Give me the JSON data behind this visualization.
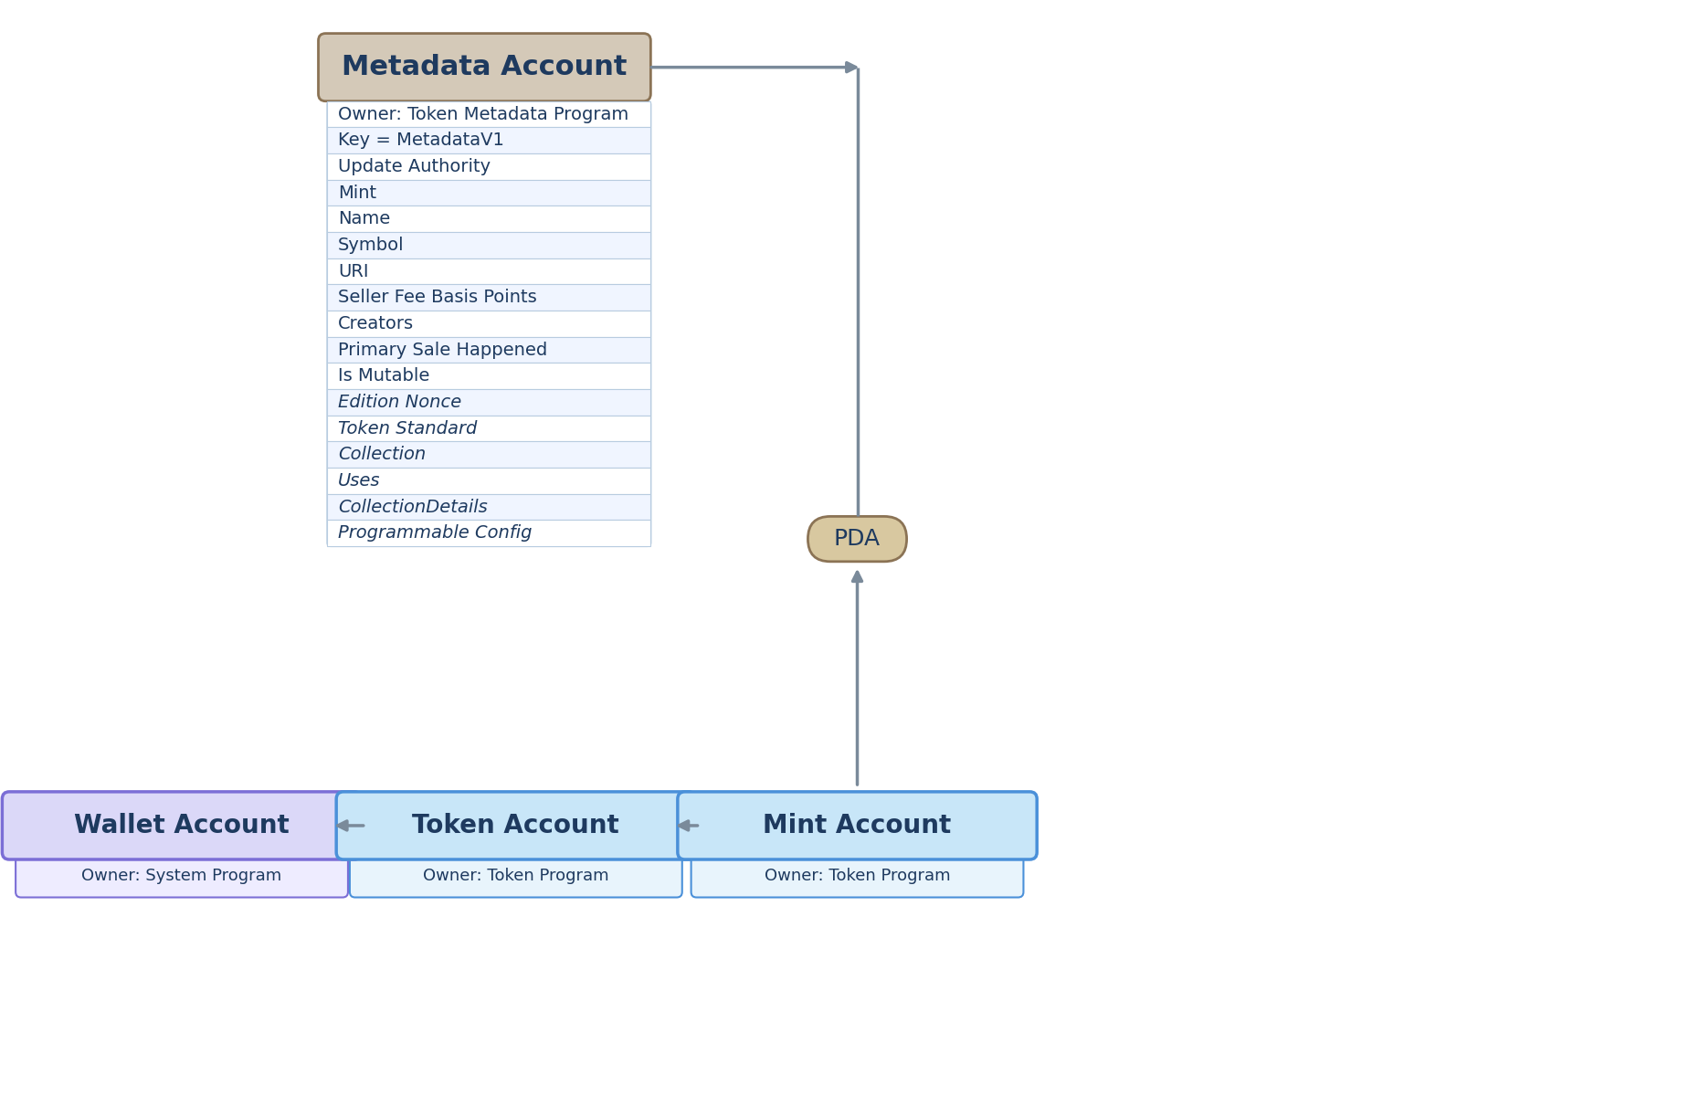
{
  "bg_color": "#ffffff",
  "title_text": "Metadata Account",
  "title_bg": "#d4c9b8",
  "title_border": "#8b7355",
  "title_text_color": "#1e3a5f",
  "field_bg_even": "#ffffff",
  "field_bg_odd": "#f0f5ff",
  "field_border": "#b8cce0",
  "field_text_color": "#1e3a5f",
  "metadata_fields": [
    {
      "text": "Owner: Token Metadata Program",
      "italic": false
    },
    {
      "text": "Key = MetadataV1",
      "italic": false
    },
    {
      "text": "Update Authority",
      "italic": false
    },
    {
      "text": "Mint",
      "italic": false
    },
    {
      "text": "Name",
      "italic": false
    },
    {
      "text": "Symbol",
      "italic": false
    },
    {
      "text": "URI",
      "italic": false
    },
    {
      "text": "Seller Fee Basis Points",
      "italic": false
    },
    {
      "text": "Creators",
      "italic": false
    },
    {
      "text": "Primary Sale Happened",
      "italic": false
    },
    {
      "text": "Is Mutable",
      "italic": false
    },
    {
      "text": "Edition Nonce",
      "italic": true
    },
    {
      "text": "Token Standard",
      "italic": true
    },
    {
      "text": "Collection",
      "italic": true
    },
    {
      "text": "Uses",
      "italic": true
    },
    {
      "text": "CollectionDetails",
      "italic": true
    },
    {
      "text": "Programmable Config",
      "italic": true
    }
  ],
  "wallet_title": "Wallet Account",
  "wallet_subtitle": "Owner: System Program",
  "wallet_bg": "#dbd8f8",
  "wallet_border": "#7b6ed6",
  "wallet_sub_bg": "#eeecff",
  "token_title": "Token Account",
  "token_subtitle": "Owner: Token Program",
  "token_bg": "#c8e6f8",
  "token_border": "#4a90d9",
  "token_sub_bg": "#e8f4fc",
  "mint_title": "Mint Account",
  "mint_subtitle": "Owner: Token Program",
  "mint_bg": "#c8e6f8",
  "mint_border": "#4a90d9",
  "mint_sub_bg": "#e8f4fc",
  "pda_text": "PDA",
  "pda_bg": "#d8c8a0",
  "pda_border": "#8b7355",
  "pda_text_color": "#1e3a5f",
  "arrow_color": "#7a8a9a",
  "arrow_lw": 2.5,
  "box_title_color": "#1e3a5f"
}
